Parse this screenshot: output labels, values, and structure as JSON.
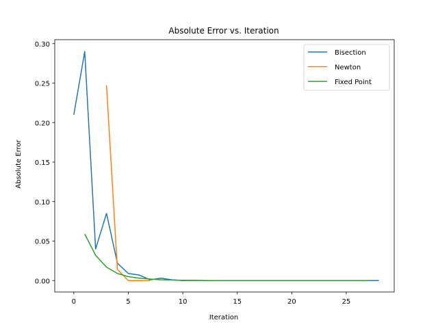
{
  "chart_data": {
    "type": "line",
    "title": "Absolute Error vs. Iteration",
    "xlabel": "Iteration",
    "ylabel": "Absolute Error",
    "xlim": [
      -1.75,
      29.4
    ],
    "ylim": [
      -0.0145,
      0.305
    ],
    "xticks": [
      0,
      5,
      10,
      15,
      20,
      25
    ],
    "yticks": [
      0.0,
      0.05,
      0.1,
      0.15,
      0.2,
      0.25,
      0.3
    ],
    "xtick_labels": [
      "0",
      "5",
      "10",
      "15",
      "20",
      "25"
    ],
    "ytick_labels": [
      "0.00",
      "0.05",
      "0.10",
      "0.15",
      "0.20",
      "0.25",
      "0.30"
    ],
    "grid": false,
    "legend_position": "top-right",
    "series": [
      {
        "name": "Bisection",
        "color": "#1f77b4",
        "x": [
          0,
          1,
          2,
          3,
          4,
          5,
          6,
          7,
          8,
          9,
          10,
          11,
          12,
          13,
          14,
          15,
          16,
          17,
          18,
          19,
          20,
          21,
          22,
          23,
          24,
          25,
          26,
          27,
          28
        ],
        "y": [
          0.21,
          0.29,
          0.04,
          0.085,
          0.022,
          0.009,
          0.007,
          0.001,
          0.003,
          0.001,
          0.0,
          0.0003,
          0.0,
          0.0,
          0.0,
          0.0,
          0.0,
          0.0,
          0.0,
          0.0,
          0.0,
          0.0,
          0.0,
          0.0,
          0.0,
          0.0,
          0.0,
          0.0,
          0.0
        ]
      },
      {
        "name": "Newton",
        "color": "#ff7f0e",
        "x": [
          3,
          4,
          5,
          6,
          7
        ],
        "y": [
          0.247,
          0.014,
          0.0,
          0.0,
          0.0
        ]
      },
      {
        "name": "Fixed Point",
        "color": "#2ca02c",
        "x": [
          1,
          2,
          3,
          4,
          5,
          6,
          7,
          8,
          9,
          10,
          11,
          12,
          13,
          14,
          15,
          16,
          17,
          18,
          19,
          20,
          21,
          22,
          23,
          24,
          25,
          26,
          27
        ],
        "y": [
          0.059,
          0.032,
          0.017,
          0.009,
          0.005,
          0.003,
          0.002,
          0.001,
          0.0006,
          0.0004,
          0.0002,
          0.0001,
          0.0,
          0.0,
          0.0,
          0.0,
          0.0,
          0.0,
          0.0,
          0.0,
          0.0,
          0.0,
          0.0,
          0.0,
          0.0,
          0.0,
          0.0
        ]
      }
    ]
  }
}
